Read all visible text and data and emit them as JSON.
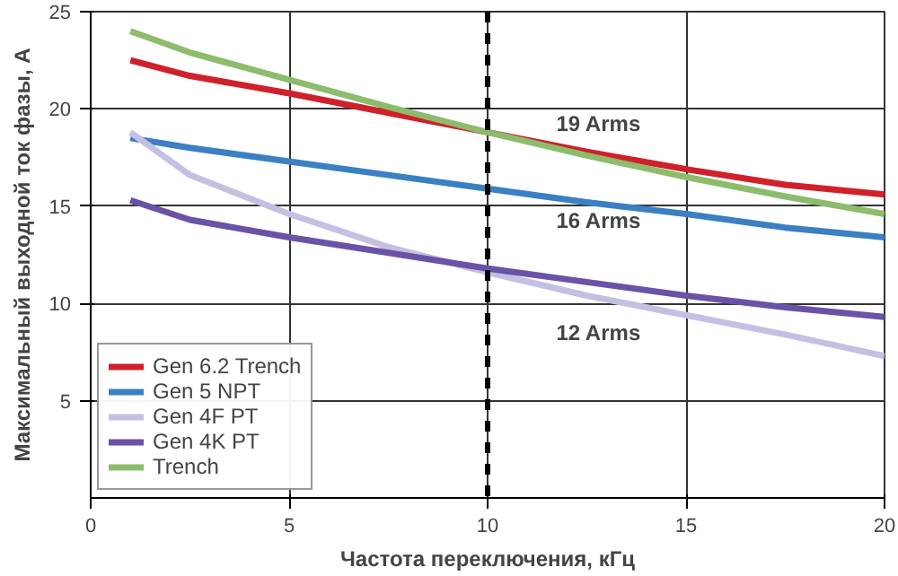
{
  "chart_data": {
    "type": "line",
    "xlabel": "Частота переключения, кГц",
    "ylabel": "Максимальный выходной ток фазы, А",
    "x": [
      1,
      2.5,
      5,
      7.5,
      10,
      12.5,
      15,
      17.5,
      20
    ],
    "series": [
      {
        "name": "Gen 6.2 Trench",
        "color": "#d0202a",
        "values": [
          22.5,
          21.7,
          20.8,
          19.8,
          18.8,
          17.8,
          16.9,
          16.1,
          15.6
        ]
      },
      {
        "name": "Gen 5 NPT",
        "color": "#3a80c2",
        "values": [
          18.5,
          18.0,
          17.3,
          16.6,
          15.9,
          15.2,
          14.6,
          13.9,
          13.4
        ]
      },
      {
        "name": "Gen 4F PT",
        "color": "#c4c0e2",
        "values": [
          18.8,
          16.6,
          14.6,
          12.9,
          11.6,
          10.4,
          9.4,
          8.4,
          7.3
        ]
      },
      {
        "name": "Gen 4K PT",
        "color": "#6a52a6",
        "values": [
          15.3,
          14.3,
          13.4,
          12.6,
          11.8,
          11.1,
          10.4,
          9.8,
          9.3
        ]
      },
      {
        "name": "Trench",
        "color": "#8cbc6c",
        "values": [
          24.0,
          22.9,
          21.5,
          20.1,
          18.8,
          17.6,
          16.5,
          15.5,
          14.6
        ]
      }
    ],
    "xlim": [
      0,
      20
    ],
    "ylim": [
      0,
      25
    ],
    "xticks": [
      0,
      5,
      10,
      15,
      20
    ],
    "yticks": [
      5,
      10,
      15,
      20,
      25
    ],
    "ref_lines": [
      {
        "axis": "x",
        "value": 10,
        "color": "#000000",
        "line_style": "dashed"
      }
    ],
    "annotations": [
      "19 Arms",
      "16 Arms",
      "12 Arms"
    ],
    "grid": true,
    "legend": "bottom left",
    "line_style": "solid",
    "marker": "none"
  }
}
